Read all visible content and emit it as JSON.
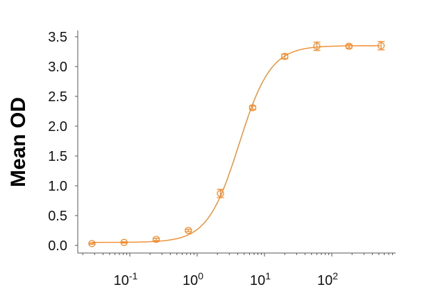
{
  "chart_data": {
    "type": "scatter",
    "title": "",
    "xlabel": "",
    "ylabel": "Mean OD",
    "x_scale": "log",
    "xlim": [
      0.0175,
      890
    ],
    "ylim": [
      -0.1,
      3.55
    ],
    "x_ticks": [
      0.1,
      1,
      10,
      100
    ],
    "x_tick_labels": [
      {
        "base": "10",
        "exp": "-1"
      },
      {
        "base": "10",
        "exp": "0"
      },
      {
        "base": "10",
        "exp": "1"
      },
      {
        "base": "10",
        "exp": "2"
      }
    ],
    "y_ticks": [
      0,
      0.5,
      1,
      1.5,
      2,
      2.5,
      3,
      3.5
    ],
    "y_tick_labels": [
      "0.0",
      "0.5",
      "1.0",
      "1.5",
      "2.0",
      "2.5",
      "3.0",
      "3.5"
    ],
    "grid": false,
    "color": "#f08a2c",
    "series": [
      {
        "marker": "open-circle",
        "x": [
          0.0274,
          0.0823,
          0.247,
          0.741,
          2.22,
          6.67,
          20,
          60,
          180,
          540
        ],
        "y": [
          0.03,
          0.05,
          0.1,
          0.25,
          0.87,
          2.31,
          3.17,
          3.34,
          3.34,
          3.35
        ],
        "error": [
          0.01,
          0.01,
          0.02,
          0.02,
          0.07,
          0.03,
          0.04,
          0.07,
          0.03,
          0.07
        ],
        "fit": {
          "model": "4PL",
          "bottom": 0.05,
          "top": 3.35,
          "ec50": 4.2,
          "hill": 1.85
        }
      }
    ]
  }
}
